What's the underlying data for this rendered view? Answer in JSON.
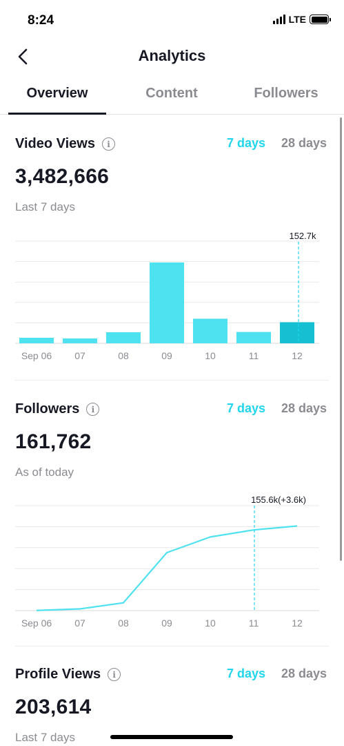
{
  "status_bar": {
    "time": "8:24",
    "network": "LTE",
    "battery_level": 1.0
  },
  "nav": {
    "title": "Analytics",
    "back_icon": "chevron-left-icon"
  },
  "tabs": [
    {
      "label": "Overview",
      "active": true
    },
    {
      "label": "Content",
      "active": false
    },
    {
      "label": "Followers",
      "active": false
    }
  ],
  "colors": {
    "accent": "#20d5ec",
    "bar": "#4ee1f0",
    "bar_highlight": "#17bfd2",
    "text": "#161823",
    "muted": "#8a8b91",
    "grid": "#e8e8e8"
  },
  "video_views": {
    "title": "Video Views",
    "range_7": "7 days",
    "range_28": "28 days",
    "value": "3,482,666",
    "sublabel": "Last 7 days"
  },
  "followers": {
    "title": "Followers",
    "range_7": "7 days",
    "range_28": "28 days",
    "value": "161,762",
    "sublabel": "As of today"
  },
  "profile_views": {
    "title": "Profile Views",
    "range_7": "7 days",
    "range_28": "28 days",
    "value": "203,614",
    "sublabel": "Last 7 days"
  },
  "chart_data": [
    {
      "type": "bar",
      "categories": [
        "Sep 06",
        "07",
        "08",
        "09",
        "10",
        "11",
        "12"
      ],
      "values": [
        40000,
        35000,
        80000,
        585000,
        178000,
        82000,
        152700
      ],
      "ylim": [
        0,
        740000
      ],
      "grid": true,
      "highlight_index": 6,
      "tooltip": "152.7k"
    },
    {
      "type": "line",
      "categories": [
        "Sep 06",
        "07",
        "08",
        "09",
        "10",
        "11",
        "12"
      ],
      "values": [
        0.1,
        1.1,
        5.0,
        37.0,
        47.0,
        51.5,
        54.0
      ],
      "ylim": [
        0,
        67
      ],
      "grid": true,
      "highlight_index": 5,
      "tooltip": "155.6k(+3.6k)"
    }
  ]
}
